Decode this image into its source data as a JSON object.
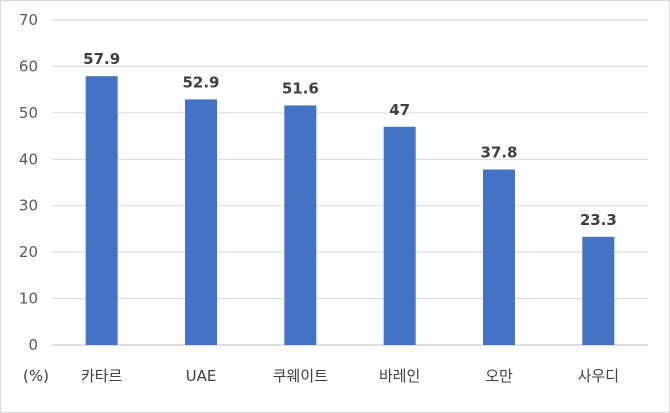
{
  "chart_data": {
    "type": "bar",
    "categories": [
      "카타르",
      "UAE",
      "쿠웨이트",
      "바레인",
      "오만",
      "사우디"
    ],
    "values": [
      57.9,
      52.9,
      51.6,
      47,
      37.8,
      23.3
    ],
    "data_labels": [
      "57.9",
      "52.9",
      "51.6",
      "47",
      "37.8",
      "23.3"
    ],
    "y_ticks": [
      "0",
      "10",
      "20",
      "30",
      "40",
      "50",
      "60",
      "70"
    ],
    "ylim": [
      0,
      70
    ],
    "unit_label": "(%)",
    "grid": true,
    "legend": "none",
    "colors": {
      "bar": "#4472C4",
      "grid": "#d9d9d9",
      "axis": "#bfbfbf"
    }
  }
}
